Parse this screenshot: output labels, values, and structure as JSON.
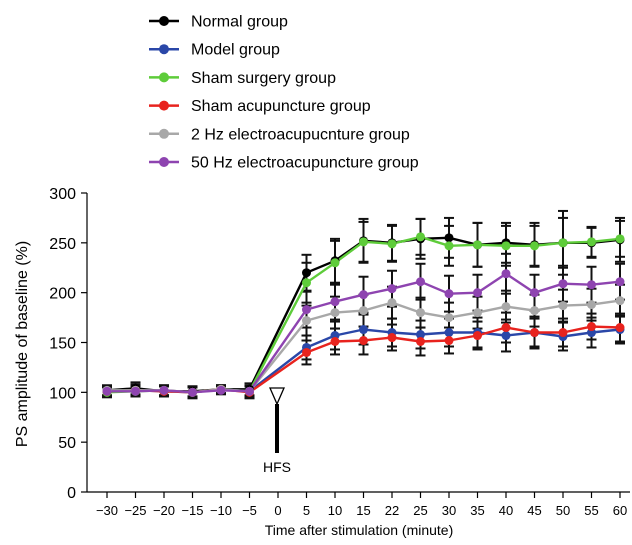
{
  "chart_data": {
    "type": "line",
    "xlabel": "Time after stimulation (minute)",
    "ylabel": "PS amplitude of baseline (%)",
    "ylim": [
      0,
      300
    ],
    "yticks": [
      0,
      50,
      100,
      150,
      200,
      250,
      300
    ],
    "x": [
      -30,
      -25,
      -20,
      -15,
      -10,
      -5,
      0,
      5,
      10,
      15,
      22,
      25,
      30,
      35,
      40,
      45,
      50,
      55,
      60
    ],
    "x_tick_labels": [
      "−30",
      "−25",
      "−20",
      "−15",
      "−10",
      "−5",
      "0",
      "5",
      "10",
      "15",
      "22",
      "25",
      "30",
      "35",
      "40",
      "45",
      "50",
      "55",
      "60"
    ],
    "grid": false,
    "legend_position": "top-left",
    "annotation": {
      "text": "HFS",
      "x": 0
    },
    "series": [
      {
        "name": "Normal group",
        "color": "#000000",
        "values": [
          102,
          104,
          101,
          101,
          103,
          103,
          null,
          220,
          232,
          252,
          250,
          254,
          255,
          248,
          250,
          248,
          250,
          250,
          253
        ],
        "errors": [
          5,
          6,
          5,
          5,
          4,
          6,
          null,
          18,
          22,
          22,
          18,
          20,
          20,
          22,
          20,
          22,
          32,
          15,
          22
        ]
      },
      {
        "name": "Model group",
        "color": "#2a47a8",
        "values": [
          101,
          102,
          101,
          100,
          103,
          101,
          null,
          145,
          157,
          163,
          160,
          158,
          160,
          160,
          157,
          160,
          156,
          160,
          163
        ],
        "errors": [
          5,
          6,
          5,
          6,
          4,
          6,
          null,
          12,
          14,
          15,
          14,
          14,
          14,
          15,
          16,
          16,
          14,
          15,
          14
        ]
      },
      {
        "name": "Sham surgery group",
        "color": "#5ecc3a",
        "values": [
          100,
          101,
          102,
          100,
          103,
          101,
          null,
          210,
          230,
          251,
          249,
          256,
          247,
          248,
          247,
          247,
          250,
          251,
          254
        ],
        "errors": [
          5,
          5,
          5,
          5,
          4,
          5,
          null,
          20,
          22,
          20,
          18,
          18,
          20,
          22,
          20,
          20,
          25,
          15,
          18
        ]
      },
      {
        "name": "Sham acupuncture group",
        "color": "#e8231e",
        "values": [
          101,
          102,
          101,
          100,
          103,
          100,
          null,
          140,
          151,
          152,
          155,
          151,
          152,
          157,
          165,
          160,
          160,
          166,
          165
        ],
        "errors": [
          5,
          5,
          5,
          5,
          4,
          6,
          null,
          12,
          13,
          14,
          13,
          14,
          13,
          14,
          15,
          14,
          14,
          13,
          14
        ]
      },
      {
        "name": "2 Hz electroacupucnture group",
        "color": "#a8a8a8",
        "values": [
          102,
          102,
          102,
          100,
          103,
          101,
          null,
          172,
          180,
          182,
          190,
          180,
          175,
          180,
          186,
          182,
          187,
          188,
          192
        ],
        "errors": [
          5,
          5,
          5,
          5,
          4,
          5,
          null,
          15,
          16,
          16,
          16,
          15,
          15,
          16,
          16,
          16,
          16,
          16,
          16
        ]
      },
      {
        "name": "50 Hz electroacupuncture group",
        "color": "#8e44b0",
        "values": [
          101,
          101,
          102,
          100,
          102,
          101,
          null,
          183,
          191,
          198,
          204,
          211,
          199,
          200,
          219,
          200,
          209,
          208,
          211
        ],
        "errors": [
          5,
          5,
          5,
          5,
          4,
          5,
          null,
          18,
          18,
          18,
          18,
          18,
          18,
          18,
          20,
          18,
          18,
          18,
          18
        ]
      }
    ]
  }
}
